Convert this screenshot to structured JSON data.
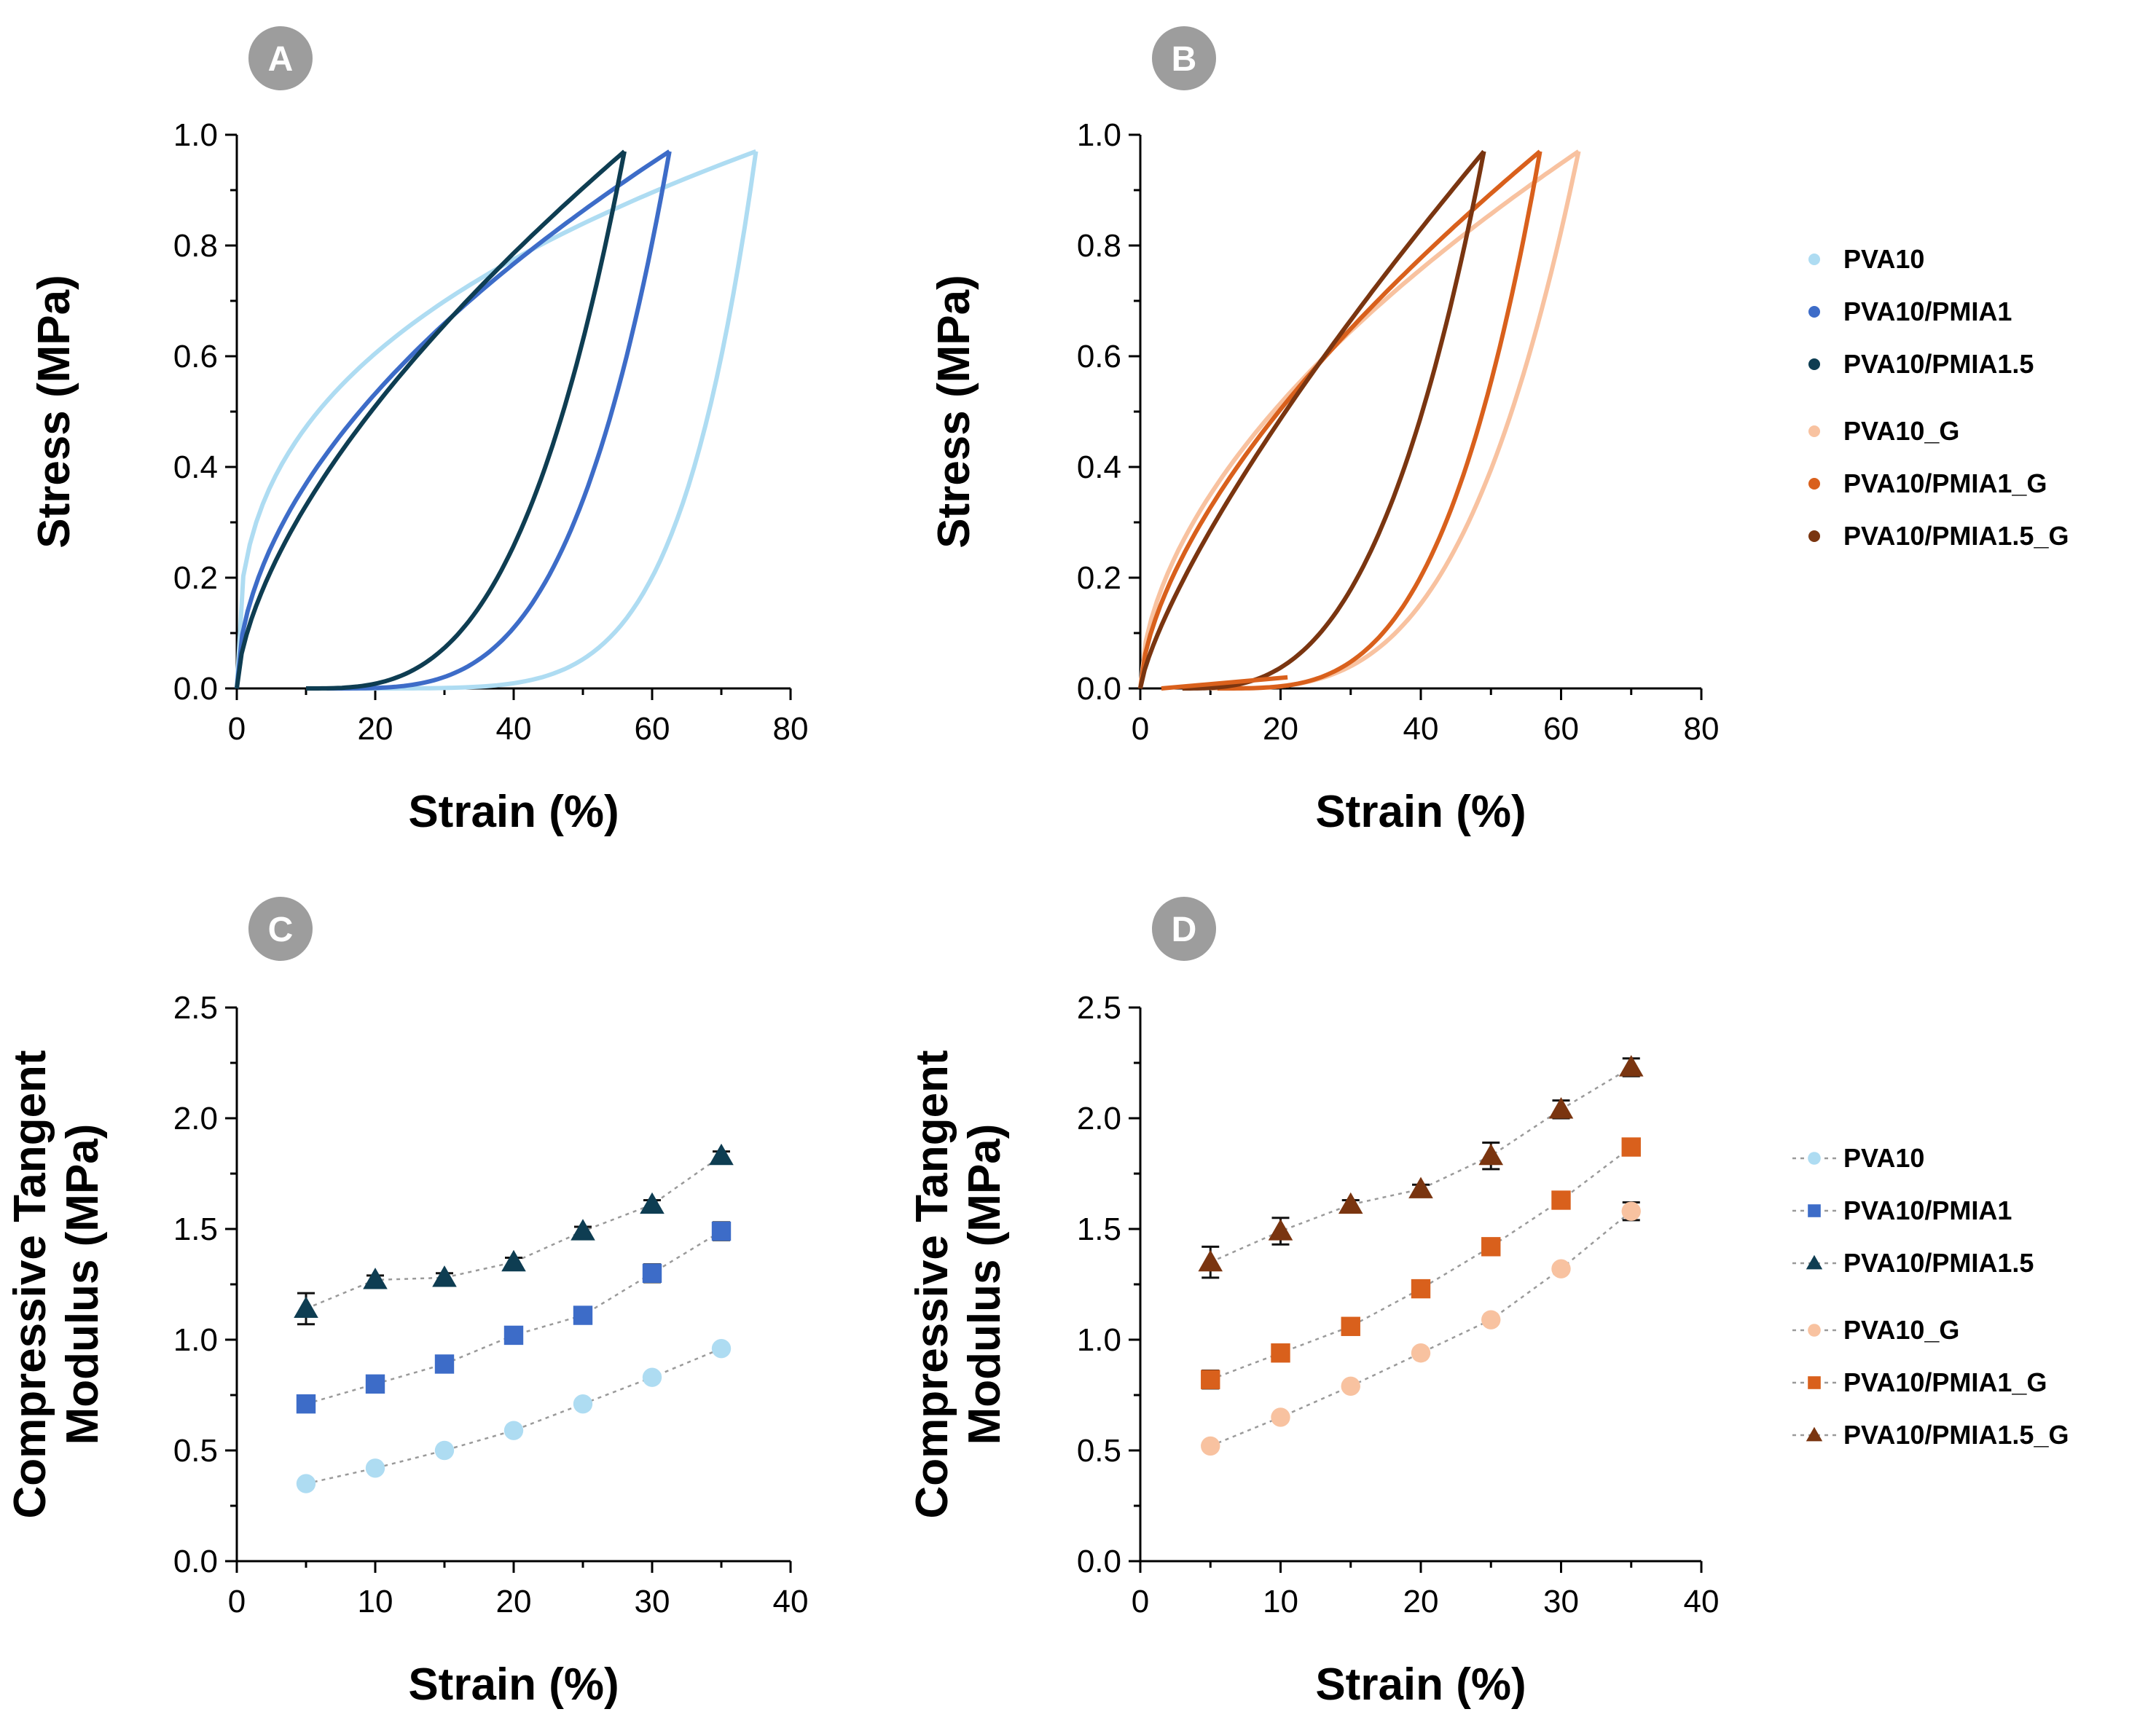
{
  "chart_data": [
    {
      "panel": "A",
      "type": "line",
      "title": "",
      "xlabel": "Strain (%)",
      "ylabel": "Stress (MPa)",
      "xlim": [
        0,
        80
      ],
      "ylim": [
        0,
        1.0
      ],
      "xticks": [
        "0",
        "20",
        "40",
        "60",
        "80"
      ],
      "yticks": [
        "0.0",
        "0.2",
        "0.4",
        "0.6",
        "0.8",
        "1.0"
      ],
      "series": [
        {
          "name": "PVA10",
          "color": "#aedcf2",
          "loading": {
            "start": 0,
            "end": 75,
            "peak": 0.97,
            "curvature": 2.8
          },
          "unloading": {
            "start": 10,
            "curvature": 6.0
          }
        },
        {
          "name": "PVA10/PMIA1",
          "color": "#3d6cc8",
          "loading": {
            "start": 0,
            "end": 62.5,
            "peak": 0.97,
            "curvature": 1.9
          },
          "unloading": {
            "start": 13,
            "curvature": 3.6
          }
        },
        {
          "name": "PVA10/PMIA1.5",
          "color": "#0e3d52",
          "loading": {
            "start": 0,
            "end": 56,
            "peak": 0.97,
            "curvature": 1.6
          },
          "unloading": {
            "start": 10,
            "curvature": 3.1
          }
        }
      ]
    },
    {
      "panel": "B",
      "type": "line",
      "title": "",
      "xlabel": "Strain (%)",
      "ylabel": "Stress (MPa)",
      "xlim": [
        0,
        80
      ],
      "ylim": [
        0,
        1.0
      ],
      "xticks": [
        "0",
        "20",
        "40",
        "60",
        "80"
      ],
      "yticks": [
        "0.0",
        "0.2",
        "0.4",
        "0.6",
        "0.8",
        "1.0"
      ],
      "series": [
        {
          "name": "PVA10_G",
          "color": "#f8c2a0",
          "loading": {
            "start": 0,
            "end": 62.5,
            "peak": 0.97,
            "curvature": 1.8
          },
          "unloading": {
            "start": 10,
            "curvature": 3.3
          }
        },
        {
          "name": "PVA10/PMIA1_G",
          "color": "#d9601c",
          "loading": {
            "start": 0,
            "end": 57,
            "peak": 0.97,
            "curvature": 1.6
          },
          "unloading": {
            "start": 11,
            "curvature": 3.4
          }
        },
        {
          "name": "PVA10/PMIA1.5_G",
          "color": "#7a3510",
          "loading": {
            "start": 0,
            "end": 49,
            "peak": 0.97,
            "curvature": 1.3
          },
          "unloading": {
            "start": 6,
            "curvature": 2.9
          }
        }
      ],
      "residual_tail": {
        "color": "#d9601c",
        "x": [
          3,
          21
        ],
        "y": [
          0.0,
          0.02
        ]
      }
    },
    {
      "panel": "C",
      "type": "scatter",
      "title": "",
      "xlabel": "Strain (%)",
      "ylabel": "Compressive Tangent Modulus (MPa)",
      "ylabel_lines": [
        "Compressive Tangent",
        "Modulus (MPa)"
      ],
      "xlim": [
        0,
        40
      ],
      "ylim": [
        0,
        2.5
      ],
      "xticks": [
        "0",
        "10",
        "20",
        "30",
        "40"
      ],
      "yticks": [
        "0.0",
        "0.5",
        "1.0",
        "1.5",
        "2.0",
        "2.5"
      ],
      "x": [
        5,
        10,
        15,
        20,
        25,
        30,
        35
      ],
      "series": [
        {
          "name": "PVA10",
          "color": "#aedcf2",
          "marker": "circle",
          "values": [
            0.35,
            0.42,
            0.5,
            0.59,
            0.71,
            0.83,
            0.96
          ],
          "errors": [
            0.01,
            0.01,
            0.01,
            0.01,
            0.01,
            0.01,
            0.01
          ]
        },
        {
          "name": "PVA10/PMIA1",
          "color": "#3d6cc8",
          "marker": "square",
          "values": [
            0.71,
            0.8,
            0.89,
            1.02,
            1.11,
            1.3,
            1.49
          ],
          "errors": [
            0.02,
            0.02,
            0.02,
            0.02,
            0.02,
            0.04,
            0.04
          ]
        },
        {
          "name": "PVA10/PMIA1.5",
          "color": "#0e3d52",
          "marker": "triangle",
          "values": [
            1.14,
            1.27,
            1.28,
            1.35,
            1.49,
            1.61,
            1.83
          ],
          "errors": [
            0.07,
            0.02,
            0.02,
            0.02,
            0.02,
            0.02,
            0.02
          ]
        }
      ]
    },
    {
      "panel": "D",
      "type": "scatter",
      "title": "",
      "xlabel": "Strain (%)",
      "ylabel": "Compressive Tangent Modulus (MPa)",
      "ylabel_lines": [
        "Compressive Tangent",
        "Modulus (MPa)"
      ],
      "xlim": [
        0,
        40
      ],
      "ylim": [
        0,
        2.5
      ],
      "xticks": [
        "0",
        "10",
        "20",
        "30",
        "40"
      ],
      "yticks": [
        "0.0",
        "0.5",
        "1.0",
        "1.5",
        "2.0",
        "2.5"
      ],
      "x": [
        5,
        10,
        15,
        20,
        25,
        30,
        35
      ],
      "series": [
        {
          "name": "PVA10_G",
          "color": "#f8c2a0",
          "marker": "circle",
          "values": [
            0.52,
            0.65,
            0.79,
            0.94,
            1.09,
            1.32,
            1.58
          ],
          "errors": [
            0.01,
            0.01,
            0.01,
            0.01,
            0.01,
            0.01,
            0.04
          ]
        },
        {
          "name": "PVA10/PMIA1_G",
          "color": "#d9601c",
          "marker": "square",
          "values": [
            0.82,
            0.94,
            1.06,
            1.23,
            1.42,
            1.63,
            1.87
          ],
          "errors": [
            0.04,
            0.02,
            0.02,
            0.02,
            0.02,
            0.02,
            0.02
          ]
        },
        {
          "name": "PVA10/PMIA1.5_G",
          "color": "#7a3510",
          "marker": "triangle",
          "values": [
            1.35,
            1.49,
            1.61,
            1.68,
            1.83,
            2.04,
            2.23
          ],
          "errors": [
            0.07,
            0.06,
            0.02,
            0.02,
            0.06,
            0.04,
            0.04
          ]
        }
      ]
    }
  ],
  "badge_color": "#9d9d9d",
  "legends": {
    "top": {
      "style": "dot",
      "groups": [
        [
          {
            "name": "PVA10",
            "color": "#aedcf2"
          },
          {
            "name": "PVA10/PMIA1",
            "color": "#3d6cc8"
          },
          {
            "name": "PVA10/PMIA1.5",
            "color": "#0e3d52"
          }
        ],
        [
          {
            "name": "PVA10_G",
            "color": "#f8c2a0"
          },
          {
            "name": "PVA10/PMIA1_G",
            "color": "#d9601c"
          },
          {
            "name": "PVA10/PMIA1.5_G",
            "color": "#7a3510"
          }
        ]
      ]
    },
    "bottom": {
      "style": "line-marker",
      "groups": [
        [
          {
            "name": "PVA10",
            "color": "#aedcf2",
            "marker": "circle"
          },
          {
            "name": "PVA10/PMIA1",
            "color": "#3d6cc8",
            "marker": "square"
          },
          {
            "name": "PVA10/PMIA1.5",
            "color": "#0e3d52",
            "marker": "triangle"
          }
        ],
        [
          {
            "name": "PVA10_G",
            "color": "#f8c2a0",
            "marker": "circle"
          },
          {
            "name": "PVA10/PMIA1_G",
            "color": "#d9601c",
            "marker": "square"
          },
          {
            "name": "PVA10/PMIA1.5_G",
            "color": "#7a3510",
            "marker": "triangle"
          }
        ]
      ]
    }
  }
}
